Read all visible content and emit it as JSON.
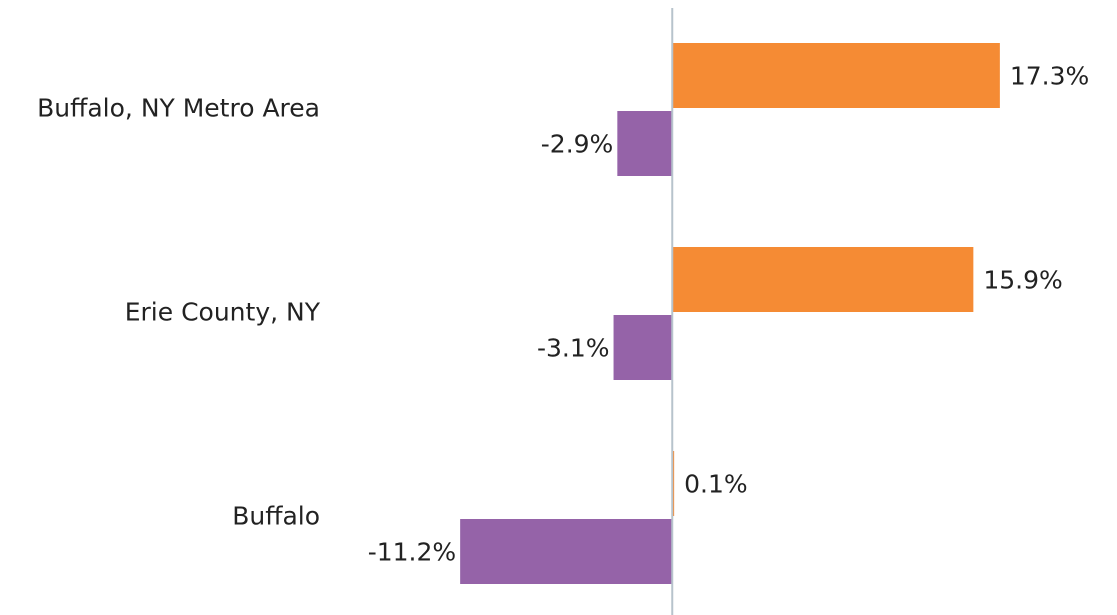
{
  "chart_data": {
    "type": "hbar",
    "categories": [
      "Buffalo, NY Metro Area",
      "Erie County, NY",
      "Buffalo"
    ],
    "series": [
      {
        "color": "#f58b34",
        "values": [
          17.3,
          15.9,
          0.1
        ],
        "value_labels": [
          "17.3%",
          "15.9%",
          "0.1%"
        ]
      },
      {
        "color": "#9563a8",
        "values": [
          -2.9,
          -3.1,
          -11.2
        ],
        "value_labels": [
          "-2.9%",
          "-3.1%",
          "-11.2%"
        ]
      }
    ],
    "xlim": [
      -12,
      20
    ]
  }
}
